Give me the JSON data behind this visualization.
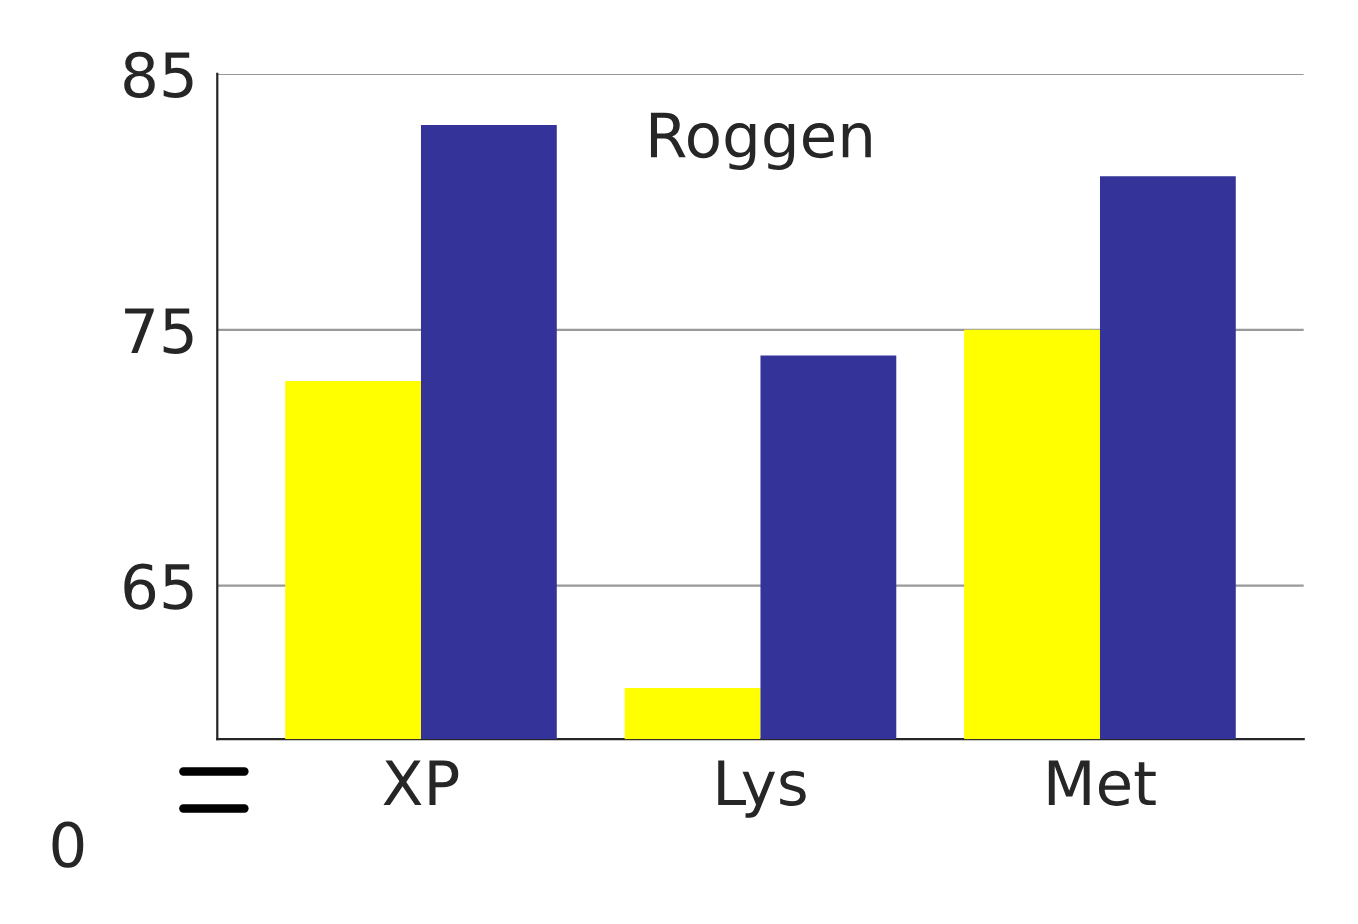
{
  "chart_data": {
    "type": "bar",
    "title": "Roggen",
    "categories": [
      "XP",
      "Lys",
      "Met"
    ],
    "series": [
      {
        "color": "#ffff00",
        "values": [
          73,
          61,
          75
        ]
      },
      {
        "color": "#333399",
        "values": [
          83,
          74,
          81
        ]
      }
    ],
    "ylim": [
      59,
      85
    ],
    "yticks": [
      65,
      75,
      85
    ],
    "grid": "y",
    "annotations": [
      "0"
    ]
  }
}
